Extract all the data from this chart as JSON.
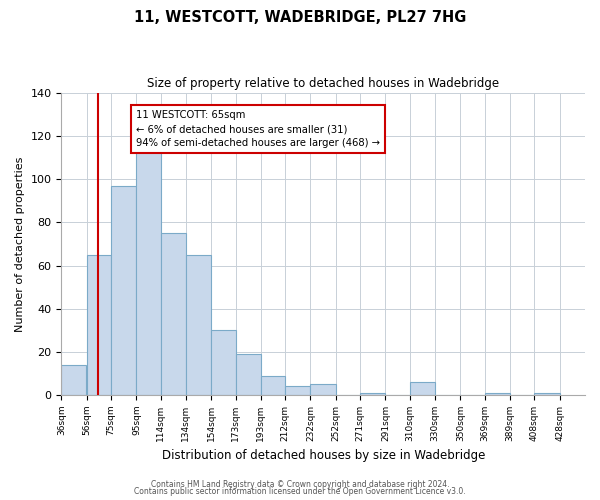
{
  "title": "11, WESTCOTT, WADEBRIDGE, PL27 7HG",
  "subtitle": "Size of property relative to detached houses in Wadebridge",
  "xlabel": "Distribution of detached houses by size in Wadebridge",
  "ylabel": "Number of detached properties",
  "bar_left_edges": [
    36,
    56,
    75,
    95,
    114,
    134,
    154,
    173,
    193,
    212,
    232,
    252,
    271,
    291,
    310,
    330,
    350,
    369,
    389,
    408
  ],
  "bar_heights": [
    14,
    65,
    97,
    114,
    75,
    65,
    30,
    19,
    9,
    4,
    5,
    0,
    1,
    0,
    6,
    0,
    0,
    1,
    0,
    1
  ],
  "bar_widths": [
    19,
    19,
    20,
    19,
    20,
    20,
    19,
    20,
    19,
    20,
    20,
    19,
    20,
    19,
    20,
    20,
    19,
    20,
    19,
    20
  ],
  "tick_labels": [
    "36sqm",
    "56sqm",
    "75sqm",
    "95sqm",
    "114sqm",
    "134sqm",
    "154sqm",
    "173sqm",
    "193sqm",
    "212sqm",
    "232sqm",
    "252sqm",
    "271sqm",
    "291sqm",
    "310sqm",
    "330sqm",
    "350sqm",
    "369sqm",
    "389sqm",
    "408sqm",
    "428sqm"
  ],
  "tick_positions": [
    36,
    56,
    75,
    95,
    114,
    134,
    154,
    173,
    193,
    212,
    232,
    252,
    271,
    291,
    310,
    330,
    350,
    369,
    389,
    408,
    428
  ],
  "bar_color": "#c8d8eb",
  "bar_edge_color": "#7baac8",
  "highlight_line_x": 65,
  "highlight_line_color": "#cc0000",
  "annotation_title": "11 WESTCOTT: 65sqm",
  "annotation_line1": "← 6% of detached houses are smaller (31)",
  "annotation_line2": "94% of semi-detached houses are larger (468) →",
  "annotation_box_color": "#ffffff",
  "annotation_box_edge_color": "#cc0000",
  "ylim": [
    0,
    140
  ],
  "xlim": [
    36,
    448
  ],
  "yticks": [
    0,
    20,
    40,
    60,
    80,
    100,
    120,
    140
  ],
  "footer1": "Contains HM Land Registry data © Crown copyright and database right 2024.",
  "footer2": "Contains public sector information licensed under the Open Government Licence v3.0.",
  "bg_color": "#ffffff",
  "grid_color": "#c8d0d8"
}
